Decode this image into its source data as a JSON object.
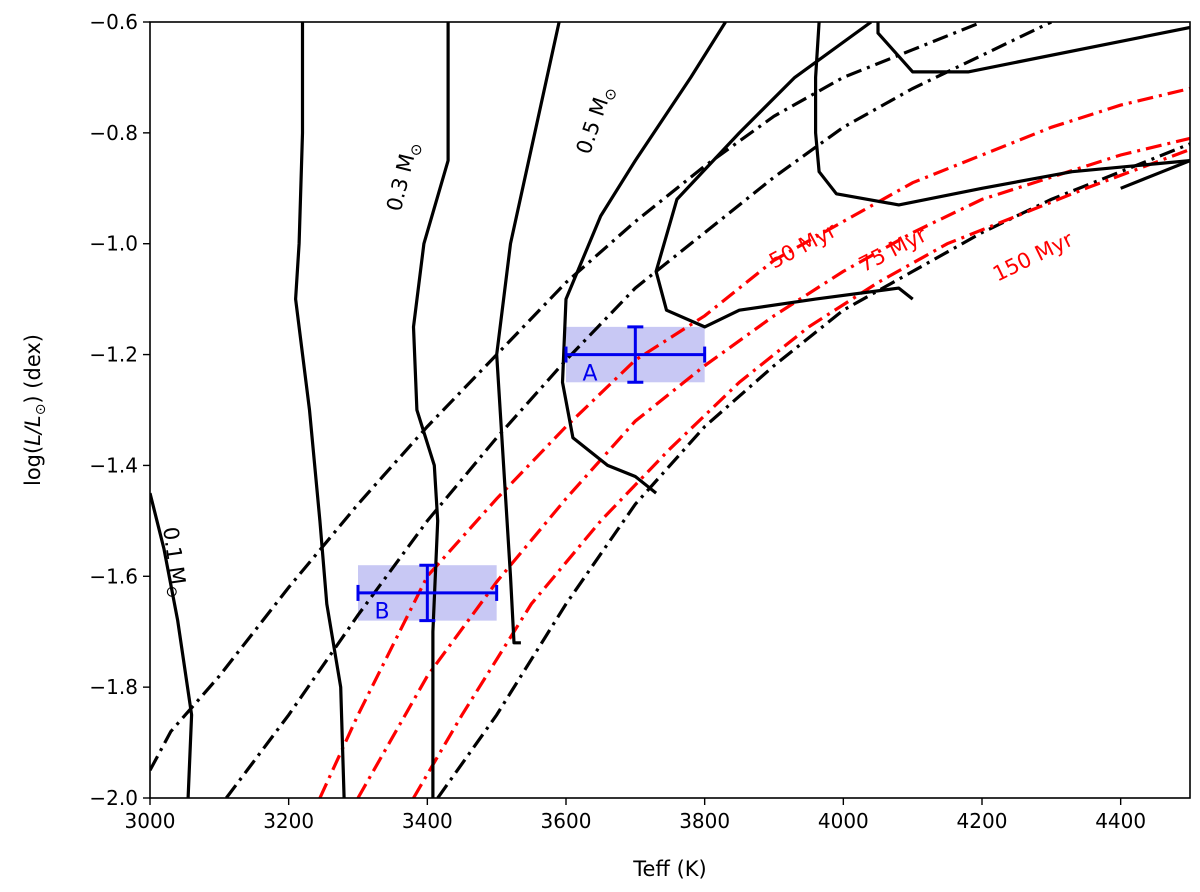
{
  "chart_data": {
    "type": "line",
    "xlabel": "Teff (K)",
    "ylabel_main": "log(",
    "ylabel_italic": "L/L",
    "ylabel_sub": "⊙",
    "ylabel_tail": ") (dex)",
    "xlim": [
      3000,
      4500
    ],
    "ylim": [
      -2.0,
      -0.6
    ],
    "xticks": [
      "3000",
      "3200",
      "3400",
      "3600",
      "3800",
      "4000",
      "4200",
      "4400"
    ],
    "yticks": [
      "−0.6",
      "−0.8",
      "−1.0",
      "−1.2",
      "−1.4",
      "−1.6",
      "−1.8",
      "−2.0"
    ],
    "grid": false,
    "mass_tracks": [
      {
        "label": "0.1 M",
        "points": [
          [
            3000,
            -1.45
          ],
          [
            3020,
            -1.55
          ],
          [
            3040,
            -1.68
          ],
          [
            3060,
            -1.85
          ],
          [
            3055,
            -2.0
          ]
        ]
      },
      {
        "label": "0.3 M",
        "points": [
          [
            3220,
            -0.6
          ],
          [
            3220,
            -0.8
          ],
          [
            3215,
            -1.0
          ],
          [
            3210,
            -1.1
          ],
          [
            3230,
            -1.3
          ],
          [
            3245,
            -1.5
          ],
          [
            3255,
            -1.65
          ],
          [
            3275,
            -1.8
          ],
          [
            3280,
            -2.0
          ]
        ]
      },
      {
        "label": "0.5 M",
        "points": [
          [
            3430,
            -0.6
          ],
          [
            3430,
            -0.85
          ],
          [
            3395,
            -1.0
          ],
          [
            3380,
            -1.15
          ],
          [
            3385,
            -1.3
          ],
          [
            3410,
            -1.4
          ],
          [
            3415,
            -1.5
          ],
          [
            3408,
            -1.7
          ],
          [
            3408,
            -2.0
          ]
        ]
      },
      {
        "label": "",
        "points": [
          [
            3590,
            -0.6
          ],
          [
            3555,
            -0.8
          ],
          [
            3520,
            -1.0
          ],
          [
            3500,
            -1.2
          ],
          [
            3510,
            -1.4
          ],
          [
            3520,
            -1.6
          ],
          [
            3525,
            -1.72
          ],
          [
            3535,
            -1.72
          ]
        ]
      },
      {
        "label": "",
        "points": [
          [
            3830,
            -0.6
          ],
          [
            3780,
            -0.7
          ],
          [
            3700,
            -0.85
          ],
          [
            3650,
            -0.95
          ],
          [
            3600,
            -1.1
          ],
          [
            3595,
            -1.25
          ],
          [
            3610,
            -1.35
          ],
          [
            3660,
            -1.4
          ],
          [
            3700,
            -1.42
          ],
          [
            3730,
            -1.45
          ]
        ]
      },
      {
        "label": "",
        "points": [
          [
            4040,
            -0.6
          ],
          [
            3930,
            -0.7
          ],
          [
            3850,
            -0.8
          ],
          [
            3760,
            -0.92
          ],
          [
            3730,
            -1.05
          ],
          [
            3745,
            -1.12
          ],
          [
            3800,
            -1.15
          ],
          [
            3850,
            -1.12
          ],
          [
            3960,
            -1.1
          ],
          [
            4080,
            -1.08
          ],
          [
            4100,
            -1.1
          ]
        ]
      },
      {
        "label": "",
        "points": [
          [
            4050,
            -0.6
          ],
          [
            4050,
            -0.62
          ],
          [
            4100,
            -0.69
          ],
          [
            4180,
            -0.69
          ],
          [
            4500,
            -0.61
          ]
        ]
      },
      {
        "label": "",
        "points": [
          [
            3965,
            -0.6
          ],
          [
            3960,
            -0.7
          ],
          [
            3960,
            -0.8
          ],
          [
            3965,
            -0.87
          ],
          [
            3990,
            -0.91
          ],
          [
            4080,
            -0.93
          ],
          [
            4200,
            -0.9
          ],
          [
            4330,
            -0.87
          ],
          [
            4500,
            -0.85
          ]
        ]
      },
      {
        "label": "",
        "points": [
          [
            4400,
            -0.9
          ],
          [
            4460,
            -0.87
          ],
          [
            4500,
            -0.85
          ]
        ]
      }
    ],
    "isochrones_black": [
      {
        "points": [
          [
            3000,
            -1.95
          ],
          [
            3030,
            -1.88
          ],
          [
            3100,
            -1.78
          ],
          [
            3200,
            -1.62
          ],
          [
            3300,
            -1.47
          ],
          [
            3400,
            -1.33
          ],
          [
            3500,
            -1.2
          ],
          [
            3600,
            -1.07
          ],
          [
            3700,
            -0.96
          ],
          [
            3800,
            -0.86
          ],
          [
            3900,
            -0.77
          ],
          [
            4000,
            -0.7
          ],
          [
            4100,
            -0.65
          ],
          [
            4200,
            -0.6
          ]
        ]
      },
      {
        "points": [
          [
            3110,
            -2.0
          ],
          [
            3200,
            -1.85
          ],
          [
            3300,
            -1.67
          ],
          [
            3400,
            -1.5
          ],
          [
            3500,
            -1.35
          ],
          [
            3600,
            -1.21
          ],
          [
            3700,
            -1.08
          ],
          [
            3800,
            -0.98
          ],
          [
            3900,
            -0.88
          ],
          [
            4000,
            -0.79
          ],
          [
            4100,
            -0.72
          ],
          [
            4200,
            -0.66
          ],
          [
            4300,
            -0.6
          ]
        ]
      },
      {
        "points": [
          [
            3415,
            -2.0
          ],
          [
            3500,
            -1.85
          ],
          [
            3600,
            -1.65
          ],
          [
            3700,
            -1.47
          ],
          [
            3800,
            -1.33
          ],
          [
            3900,
            -1.22
          ],
          [
            4000,
            -1.12
          ],
          [
            4100,
            -1.05
          ],
          [
            4200,
            -0.98
          ],
          [
            4300,
            -0.92
          ],
          [
            4400,
            -0.87
          ],
          [
            4500,
            -0.82
          ]
        ]
      }
    ],
    "isochrones_red": [
      {
        "label": "50 Myr",
        "points": [
          [
            3245,
            -2.0
          ],
          [
            3300,
            -1.85
          ],
          [
            3400,
            -1.6
          ],
          [
            3500,
            -1.46
          ],
          [
            3600,
            -1.33
          ],
          [
            3700,
            -1.21
          ],
          [
            3800,
            -1.13
          ],
          [
            3900,
            -1.03
          ],
          [
            4000,
            -0.96
          ],
          [
            4100,
            -0.89
          ],
          [
            4200,
            -0.84
          ],
          [
            4300,
            -0.79
          ],
          [
            4400,
            -0.75
          ],
          [
            4500,
            -0.72
          ]
        ]
      },
      {
        "label": "75 Myr",
        "points": [
          [
            3300,
            -2.0
          ],
          [
            3400,
            -1.78
          ],
          [
            3500,
            -1.61
          ],
          [
            3600,
            -1.46
          ],
          [
            3700,
            -1.32
          ],
          [
            3800,
            -1.22
          ],
          [
            3900,
            -1.13
          ],
          [
            4000,
            -1.05
          ],
          [
            4100,
            -0.98
          ],
          [
            4200,
            -0.92
          ],
          [
            4300,
            -0.88
          ],
          [
            4400,
            -0.84
          ],
          [
            4500,
            -0.81
          ]
        ]
      },
      {
        "label": "150 Myr",
        "points": [
          [
            3380,
            -2.0
          ],
          [
            3450,
            -1.85
          ],
          [
            3550,
            -1.65
          ],
          [
            3650,
            -1.5
          ],
          [
            3750,
            -1.37
          ],
          [
            3850,
            -1.25
          ],
          [
            3950,
            -1.15
          ],
          [
            4050,
            -1.07
          ],
          [
            4150,
            -1.0
          ],
          [
            4250,
            -0.95
          ],
          [
            4350,
            -0.9
          ],
          [
            4500,
            -0.83
          ]
        ]
      }
    ],
    "sources": [
      {
        "label": "A",
        "teff": 3700,
        "teff_err": 100,
        "logL": -1.2,
        "logL_err": 0.05,
        "box_teff": [
          3600,
          3800
        ],
        "box_logL": [
          -1.25,
          -1.15
        ]
      },
      {
        "label": "B",
        "teff": 3400,
        "teff_err": 100,
        "logL": -1.63,
        "logL_err": 0.05,
        "box_teff": [
          3300,
          3500
        ],
        "box_logL": [
          -1.68,
          -1.58
        ]
      }
    ],
    "mass_label_sym": "⊙"
  }
}
